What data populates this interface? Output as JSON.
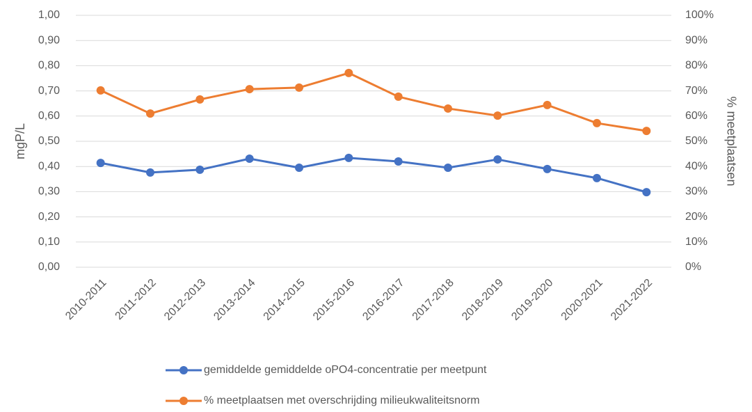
{
  "chart_data": {
    "type": "line",
    "categories": [
      "2010-2011",
      "2011-2012",
      "2012-2013",
      "2013-2014",
      "2014-2015",
      "2015-2016",
      "2016-2017",
      "2017-2018",
      "2018-2019",
      "2019-2020",
      "2020-2021",
      "2021-2022"
    ],
    "ylabel": "mgP/L",
    "y2label": "% meetplaatsen",
    "ylim": [
      0,
      1
    ],
    "yticks": [
      {
        "value": 0,
        "label": "0,00"
      },
      {
        "value": 0.1,
        "label": "0,10"
      },
      {
        "value": 0.2,
        "label": "0,20"
      },
      {
        "value": 0.3,
        "label": "0,30"
      },
      {
        "value": 0.4,
        "label": "0,40"
      },
      {
        "value": 0.5,
        "label": "0,50"
      },
      {
        "value": 0.6,
        "label": "0,60"
      },
      {
        "value": 0.7,
        "label": "0,70"
      },
      {
        "value": 0.8,
        "label": "0,80"
      },
      {
        "value": 0.9,
        "label": "0,90"
      },
      {
        "value": 1,
        "label": "1,00"
      }
    ],
    "y2lim": [
      0,
      100
    ],
    "y2ticks": [
      {
        "value": 0,
        "label": "0%"
      },
      {
        "value": 10,
        "label": "10%"
      },
      {
        "value": 20,
        "label": "20%"
      },
      {
        "value": 30,
        "label": "30%"
      },
      {
        "value": 40,
        "label": "40%"
      },
      {
        "value": 50,
        "label": "50%"
      },
      {
        "value": 60,
        "label": "60%"
      },
      {
        "value": 70,
        "label": "70%"
      },
      {
        "value": 80,
        "label": "80%"
      },
      {
        "value": 90,
        "label": "90%"
      },
      {
        "value": 100,
        "label": "100%"
      }
    ],
    "grid": true,
    "legend": "bottom",
    "series": [
      {
        "name": "gemiddelde gemiddelde oPO4-concentratie per meetpunt",
        "color": "#4472c4",
        "values": [
          0.414,
          0.376,
          0.387,
          0.431,
          0.395,
          0.434,
          0.42,
          0.395,
          0.428,
          0.39,
          0.354,
          0.298
        ]
      },
      {
        "name": "% meetplaatsen met overschrijding milieukwaliteitsnorm",
        "color": "#ed7d31",
        "axis": "y2",
        "values": [
          70.2,
          61,
          66.6,
          70.7,
          71.3,
          77.1,
          67.7,
          63,
          60.2,
          64.4,
          57.2,
          54.1
        ]
      }
    ]
  }
}
